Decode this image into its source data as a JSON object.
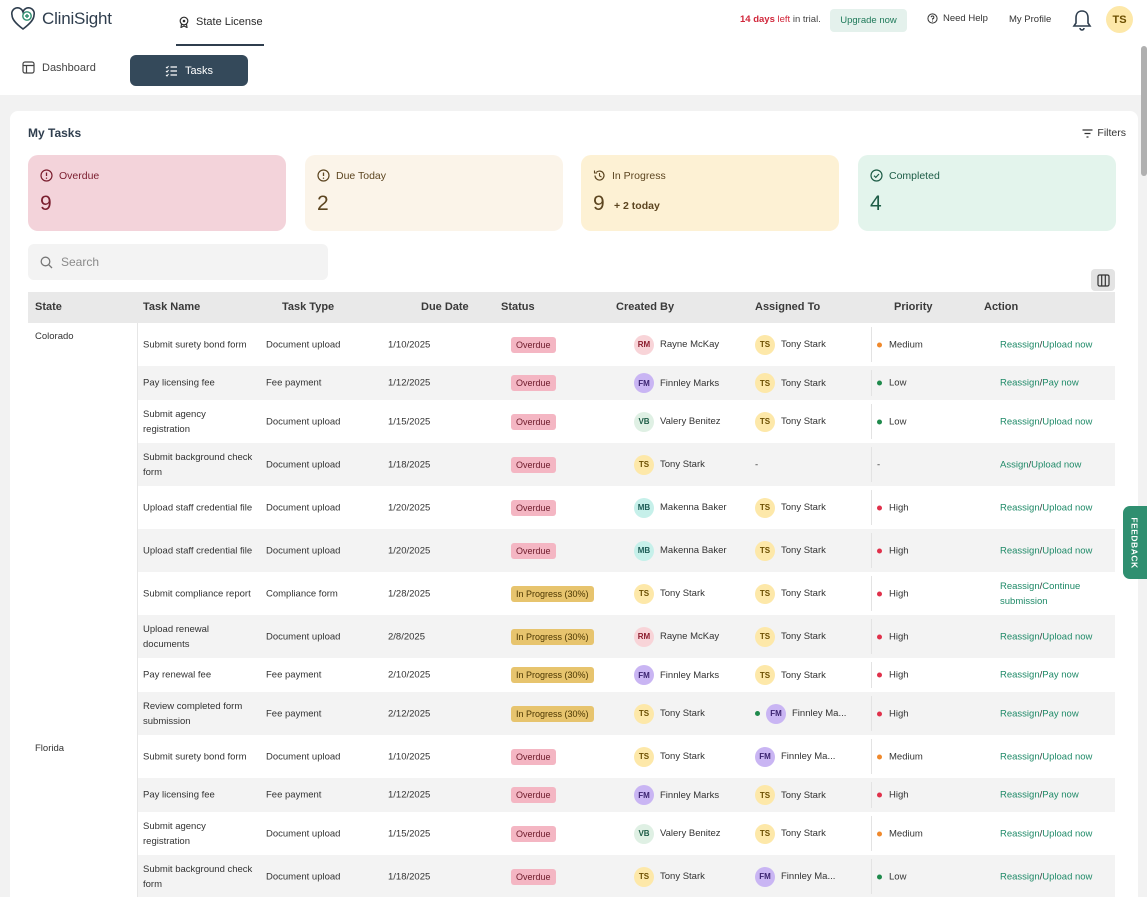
{
  "brand": {
    "name": "CliniSight"
  },
  "nav": {
    "state_license": "State License",
    "trial_days": "14 days",
    "trial_left": "left",
    "trial_rest": " in trial.",
    "upgrade": "Upgrade now",
    "help": "Need Help",
    "profile": "My Profile",
    "user_initials": "TS"
  },
  "tabs": {
    "dashboard": "Dashboard",
    "tasks": "Tasks"
  },
  "page": {
    "title": "My Tasks",
    "filters": "Filters",
    "search_placeholder": "Search"
  },
  "stats": [
    {
      "label": "Overdue",
      "value": "9",
      "extra": ""
    },
    {
      "label": "Due Today",
      "value": "2",
      "extra": ""
    },
    {
      "label": "In Progress",
      "value": "9",
      "extra": "+ 2 today"
    },
    {
      "label": "Completed",
      "value": "4",
      "extra": ""
    }
  ],
  "columns": [
    "State",
    "Task Name",
    "Task Type",
    "Due Date",
    "Status",
    "Created By",
    "Assigned To",
    "Priority",
    "Action"
  ],
  "colors": {
    "accent": "#34495a",
    "link": "#1f8a68",
    "priority_medium": "#f0892c",
    "priority_low": "#1f8a4c",
    "priority_high": "#e0314b"
  },
  "groups": [
    {
      "state": "Colorado",
      "rows": [
        {
          "name": "Submit surety bond form",
          "type": "Document upload",
          "date": "1/10/2025",
          "status": "Overdue",
          "created": "Rayne McKay",
          "created_initials": "RM",
          "assigned": "Tony Stark",
          "assigned_initials": "TS",
          "priority": "Medium",
          "action1": "Reassign",
          "action2": "Upload now"
        },
        {
          "name": "Pay licensing fee",
          "type": "Fee payment",
          "date": "1/12/2025",
          "status": "Overdue",
          "created": "Finnley Marks",
          "created_initials": "FM",
          "assigned": "Tony Stark",
          "assigned_initials": "TS",
          "priority": "Low",
          "action1": "Reassign",
          "action2": "Pay now"
        },
        {
          "name": "Submit agency registration",
          "type": "Document upload",
          "date": "1/15/2025",
          "status": "Overdue",
          "created": "Valery Benitez",
          "created_initials": "VB",
          "assigned": "Tony Stark",
          "assigned_initials": "TS",
          "priority": "Low",
          "action1": "Reassign",
          "action2": "Upload now"
        },
        {
          "name": "Submit background check form",
          "type": "Document upload",
          "date": "1/18/2025",
          "status": "Overdue",
          "created": "Tony Stark",
          "created_initials": "TS",
          "assigned": "-",
          "assigned_initials": "",
          "priority": "-",
          "action1": "Assign",
          "action2": "Upload now"
        },
        {
          "name": "Upload staff credential file",
          "type": "Document upload",
          "date": "1/20/2025",
          "status": "Overdue",
          "created": "Makenna Baker",
          "created_initials": "MB",
          "assigned": "Tony Stark",
          "assigned_initials": "TS",
          "priority": "High",
          "action1": "Reassign",
          "action2": "Upload now"
        },
        {
          "name": "Upload staff credential file",
          "type": "Document upload",
          "date": "1/20/2025",
          "status": "Overdue",
          "created": "Makenna Baker",
          "created_initials": "MB",
          "assigned": "Tony Stark",
          "assigned_initials": "TS",
          "priority": "High",
          "action1": "Reassign",
          "action2": "Upload now"
        },
        {
          "name": "Submit compliance report",
          "type": "Compliance form",
          "date": "1/28/2025",
          "status": "In Progress (30%)",
          "created": "Tony Stark",
          "created_initials": "TS",
          "assigned": "Tony Stark",
          "assigned_initials": "TS",
          "priority": "High",
          "action1": "Reassign",
          "action2": "Continue submission"
        },
        {
          "name": "Upload renewal documents",
          "type": "Document upload",
          "date": "2/8/2025",
          "status": "In Progress (30%)",
          "created": "Rayne McKay",
          "created_initials": "RM",
          "assigned": "Tony Stark",
          "assigned_initials": "TS",
          "priority": "High",
          "action1": "Reassign",
          "action2": "Upload now"
        },
        {
          "name": "Pay renewal fee",
          "type": "Fee payment",
          "date": "2/10/2025",
          "status": "In Progress (30%)",
          "created": "Finnley Marks",
          "created_initials": "FM",
          "assigned": "Tony Stark",
          "assigned_initials": "TS",
          "priority": "High",
          "action1": "Reassign",
          "action2": "Pay now"
        },
        {
          "name": "Review completed form submission",
          "type": "Fee payment",
          "date": "2/12/2025",
          "status": "In Progress (30%)",
          "created": "Tony Stark",
          "created_initials": "TS",
          "assigned": "Finnley Ma...",
          "assigned_initials": "FM",
          "priority": "High",
          "action1": "Reassign",
          "action2": "Pay now"
        }
      ]
    },
    {
      "state": "Florida",
      "rows": [
        {
          "name": "Submit surety bond form",
          "type": "Document upload",
          "date": "1/10/2025",
          "status": "Overdue",
          "created": "Tony Stark",
          "created_initials": "TS",
          "assigned": "Finnley Ma...",
          "assigned_initials": "FM",
          "priority": "Medium",
          "action1": "Reassign",
          "action2": "Upload now"
        },
        {
          "name": "Pay licensing fee",
          "type": "Fee payment",
          "date": "1/12/2025",
          "status": "Overdue",
          "created": "Finnley Marks",
          "created_initials": "FM",
          "assigned": "Tony Stark",
          "assigned_initials": "TS",
          "priority": "High",
          "action1": "Reassign",
          "action2": "Pay now"
        },
        {
          "name": "Submit agency registration",
          "type": "Document upload",
          "date": "1/15/2025",
          "status": "Overdue",
          "created": "Valery Benitez",
          "created_initials": "VB",
          "assigned": "Tony Stark",
          "assigned_initials": "TS",
          "priority": "Medium",
          "action1": "Reassign",
          "action2": "Upload now"
        },
        {
          "name": "Submit background check form",
          "type": "Document upload",
          "date": "1/18/2025",
          "status": "Overdue",
          "created": "Tony Stark",
          "created_initials": "TS",
          "assigned": "Finnley Ma...",
          "assigned_initials": "FM",
          "priority": "Low",
          "action1": "Reassign",
          "action2": "Upload now"
        }
      ]
    }
  ],
  "feedback": "FEEDBACK"
}
